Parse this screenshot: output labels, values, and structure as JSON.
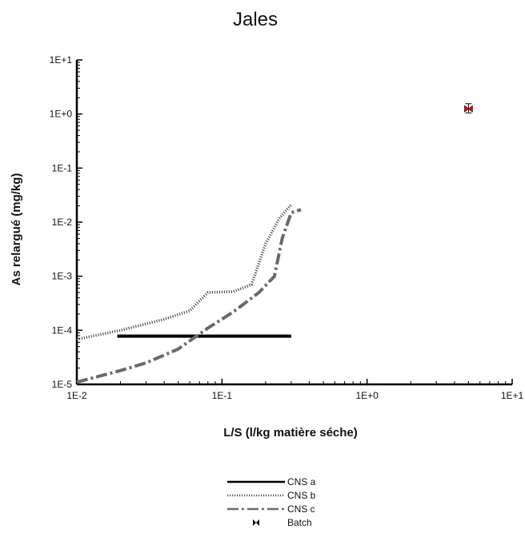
{
  "chart_data": {
    "type": "line",
    "title": "Jales",
    "xlabel": "L/S (l/kg matière séche)",
    "ylabel": "As relargué (mg/kg)",
    "x_scale": "log",
    "y_scale": "log",
    "xlim": [
      0.01,
      10
    ],
    "ylim": [
      1e-05,
      10
    ],
    "x_ticks": [
      "1E-2",
      "1E-1",
      "1E+0",
      "1E+1"
    ],
    "y_ticks": [
      "1E-5",
      "1E-4",
      "1E-3",
      "1E-2",
      "1E-1",
      "1E+0",
      "1E+1"
    ],
    "grid": false,
    "legend_position": "bottom-center",
    "series": [
      {
        "name": "CNS a",
        "style": "solid",
        "color": "#000000",
        "x": [
          0.019,
          0.3
        ],
        "y": [
          7.8e-05,
          7.8e-05
        ]
      },
      {
        "name": "CNS b",
        "style": "dotted",
        "color": "#555555",
        "x": [
          0.01,
          0.02,
          0.04,
          0.06,
          0.07,
          0.08,
          0.12,
          0.16,
          0.2,
          0.25,
          0.3
        ],
        "y": [
          6.8e-05,
          0.0001,
          0.00016,
          0.00023,
          0.00035,
          0.0005,
          0.00052,
          0.0007,
          0.004,
          0.012,
          0.021
        ]
      },
      {
        "name": "CNS c",
        "style": "dash-dot",
        "color": "#6a6a6a",
        "x": [
          0.01,
          0.02,
          0.03,
          0.05,
          0.08,
          0.12,
          0.18,
          0.23,
          0.26,
          0.3,
          0.35
        ],
        "y": [
          1.1e-05,
          1.8e-05,
          2.5e-05,
          4.5e-05,
          0.00011,
          0.00022,
          0.0005,
          0.001,
          0.005,
          0.015,
          0.017
        ]
      },
      {
        "name": "Batch",
        "style": "marker",
        "color": "#ff0000",
        "x": [
          5
        ],
        "y": [
          1.25
        ],
        "y_err_low": [
          1.05
        ],
        "y_err_high": [
          1.55
        ]
      }
    ]
  }
}
